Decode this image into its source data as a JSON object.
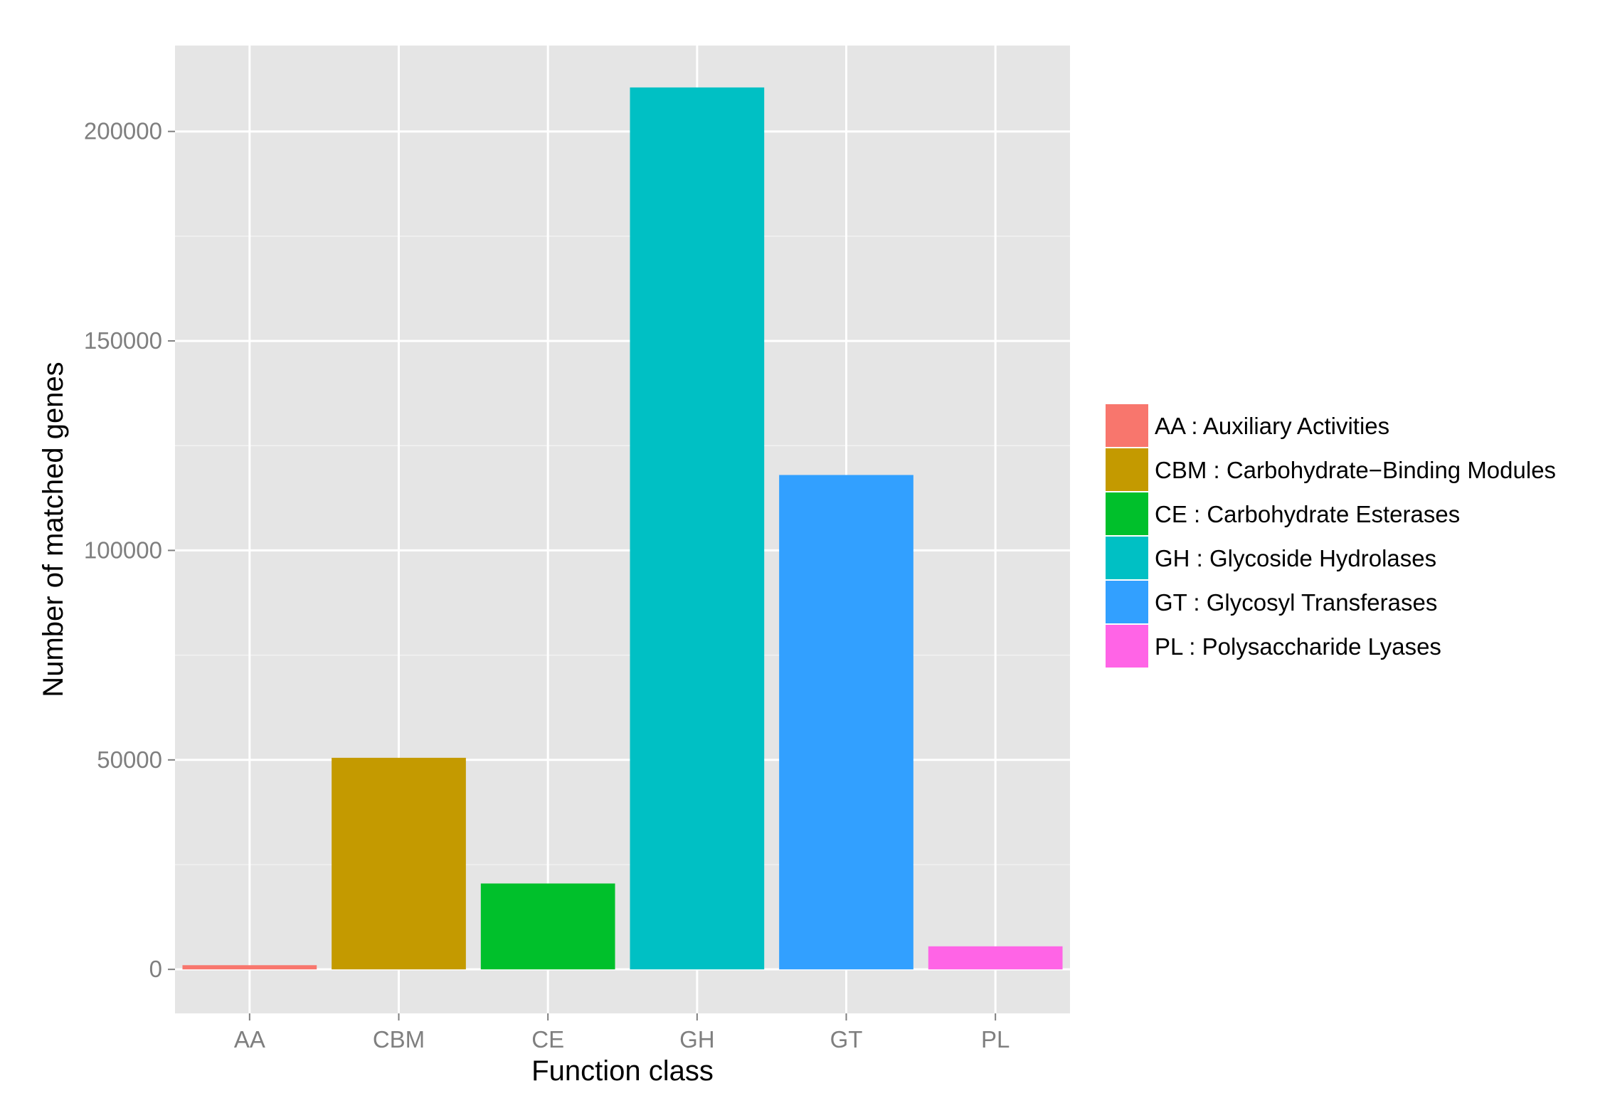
{
  "chart_data": {
    "type": "bar",
    "xlabel": "Function class",
    "ylabel": "Number of matched genes",
    "categories": [
      "AA",
      "CBM",
      "CE",
      "GH",
      "GT",
      "PL"
    ],
    "values": [
      1000,
      50500,
      20500,
      210500,
      118000,
      5500
    ],
    "colors": [
      "#F8766D",
      "#C49A00",
      "#00C02B",
      "#00C0C4",
      "#32A0FF",
      "#FF64E6"
    ],
    "y_ticks": [
      0,
      50000,
      100000,
      150000,
      200000
    ],
    "y_tick_labels": [
      "0",
      "50000",
      "100000",
      "150000",
      "200000"
    ],
    "ylim": [
      -10500,
      220500
    ],
    "grid": true,
    "background": "#E5E5E5",
    "legend": {
      "position": "right",
      "entries": [
        "AA : Auxiliary Activities",
        "CBM : Carbohydrate−Binding Modules",
        "CE : Carbohydrate Esterases",
        "GH : Glycoside Hydrolases",
        "GT : Glycosyl Transferases",
        "PL : Polysaccharide Lyases"
      ]
    }
  }
}
